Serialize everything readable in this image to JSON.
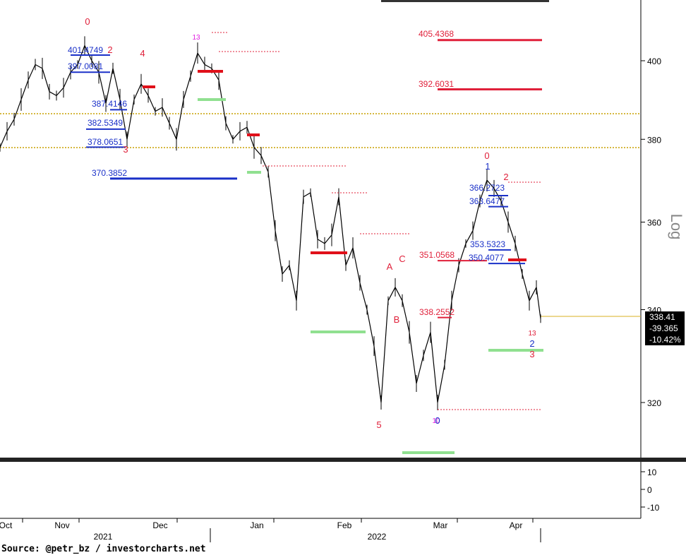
{
  "source_text": "Source: @petr_bz / investorcharts.net",
  "chart_data": {
    "type": "candlestick",
    "yscale": "log",
    "ylabel": "Log",
    "ylim": [
      312,
      412
    ],
    "y_ticks": [
      320,
      340,
      360,
      380,
      400
    ],
    "x_labels": [
      "Oct",
      "Nov",
      "Dec",
      "Jan",
      "Feb",
      "Mar",
      "Apr"
    ],
    "year_labels": [
      "2021",
      "2022"
    ],
    "last_price": "338.41",
    "change": "-39.365",
    "change_pct": "-10.42%",
    "levels": [
      {
        "label": "405.4368",
        "value": 405.4368,
        "color": "#e0203a"
      },
      {
        "label": "392.6031",
        "value": 392.6031,
        "color": "#e0203a"
      },
      {
        "label": "382.5349",
        "value": 382.5349,
        "color": "#1a30c8"
      },
      {
        "label": "378.0651",
        "value": 378.0651,
        "color": "#1a30c8"
      },
      {
        "label": "370.3852",
        "value": 370.3852,
        "color": "#1a30c8"
      },
      {
        "label": "401.4749",
        "value": 401.4749,
        "color": "#1a30c8"
      },
      {
        "label": "397.0081",
        "value": 397.0081,
        "color": "#1a30c8"
      },
      {
        "label": "387.4146",
        "value": 387.4146,
        "color": "#1a30c8"
      },
      {
        "label": "366.2723",
        "value": 366.2723,
        "color": "#1a30c8"
      },
      {
        "label": "363.6477",
        "value": 363.6477,
        "color": "#1a30c8"
      },
      {
        "label": "353.5323",
        "value": 353.5323,
        "color": "#1a30c8"
      },
      {
        "label": "351.0568",
        "value": 351.0568,
        "color": "#e0203a"
      },
      {
        "label": "350.4077",
        "value": 350.4077,
        "color": "#1a30c8"
      },
      {
        "label": "338.2552",
        "value": 338.2552,
        "color": "#e0203a"
      }
    ],
    "wave_labels": [
      {
        "text": "0",
        "color": "#e0203a"
      },
      {
        "text": "2",
        "color": "#e0203a"
      },
      {
        "text": "4",
        "color": "#e0203a"
      },
      {
        "text": "3",
        "color": "#e0203a"
      },
      {
        "text": "A",
        "color": "#e0203a"
      },
      {
        "text": "C",
        "color": "#e0203a"
      },
      {
        "text": "B",
        "color": "#e0203a"
      },
      {
        "text": "5",
        "color": "#e0203a"
      },
      {
        "text": "0",
        "color": "#e0203a"
      },
      {
        "text": "1",
        "color": "#1a30c8"
      },
      {
        "text": "2",
        "color": "#e0203a"
      },
      {
        "text": "2",
        "color": "#1a30c8"
      },
      {
        "text": "3",
        "color": "#e0203a"
      },
      {
        "text": "13",
        "color": "#e020e0"
      },
      {
        "text": "13",
        "color": "#e0203a"
      },
      {
        "text": "10",
        "color": "#e020e0"
      },
      {
        "text": "0",
        "color": "#1a30c8"
      }
    ],
    "oscillator_ticks": [
      10,
      0,
      -10
    ]
  }
}
